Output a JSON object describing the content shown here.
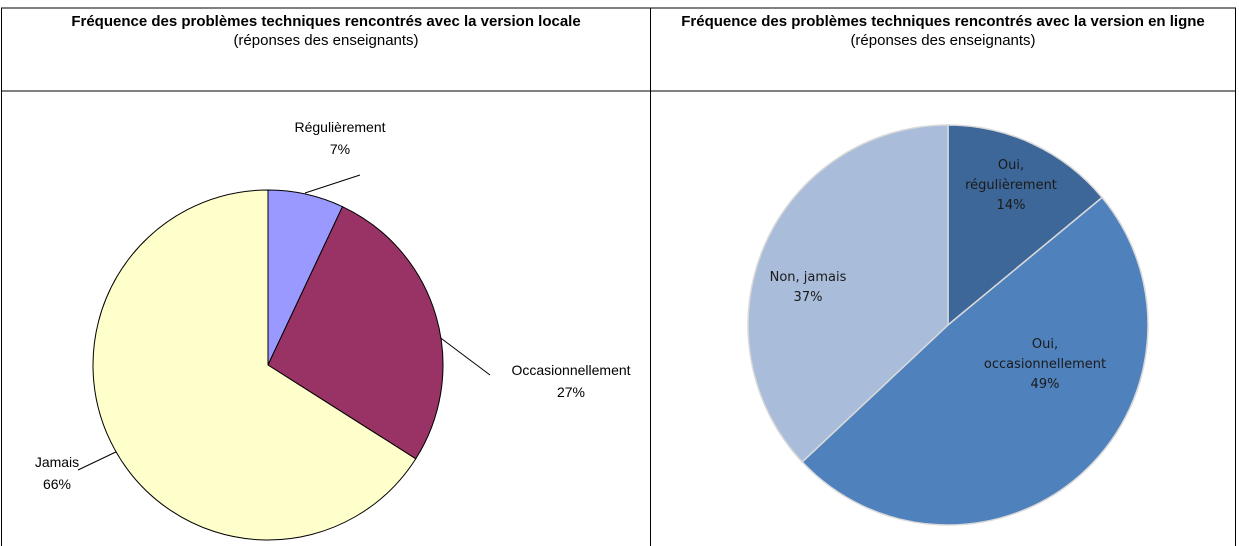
{
  "chart_data": [
    {
      "type": "pie",
      "title": "Fréquence des problèmes techniques rencontrés avec la version locale",
      "subtitle": "(réponses des enseignants)",
      "categories": [
        "Régulièrement",
        "Occasionnellement",
        "Jamais"
      ],
      "values": [
        7,
        27,
        66
      ],
      "value_labels": [
        "7%",
        "27%",
        "66%"
      ],
      "colors": [
        "#9999ff",
        "#993366",
        "#ffffcc"
      ]
    },
    {
      "type": "pie",
      "title": "Fréquence des problèmes techniques rencontrés avec la version en ligne",
      "subtitle": "(réponses des enseignants)",
      "categories": [
        "Oui, régulièrement",
        "Oui, occasionnellement",
        "Non, jamais"
      ],
      "values": [
        14,
        49,
        37
      ],
      "value_labels": [
        "14%",
        "49%",
        "37%"
      ],
      "colors": [
        "#3d6798",
        "#4f81bd",
        "#a9bcd9"
      ]
    }
  ]
}
